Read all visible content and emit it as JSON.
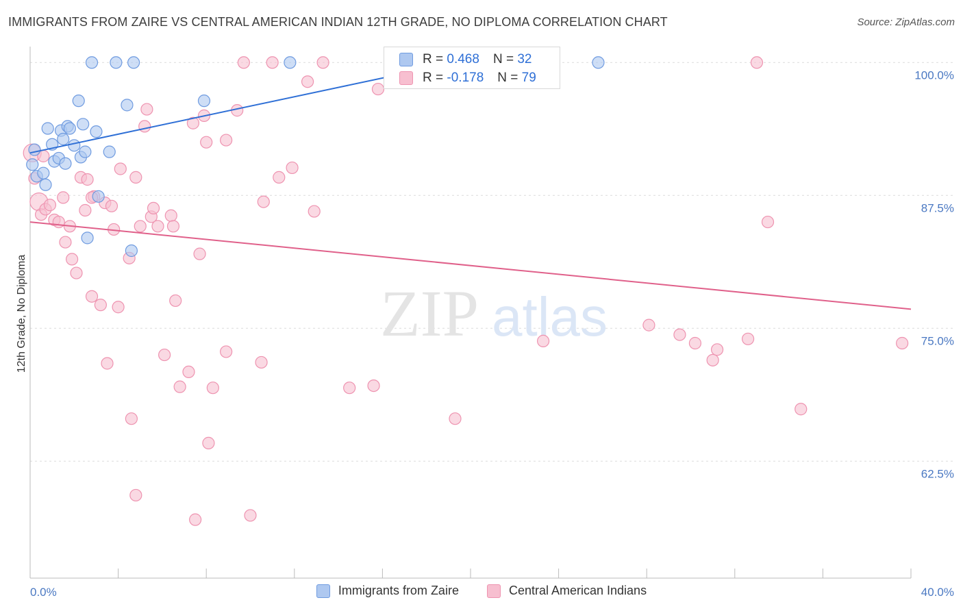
{
  "title": "IMMIGRANTS FROM ZAIRE VS CENTRAL AMERICAN INDIAN 12TH GRADE, NO DIPLOMA CORRELATION CHART",
  "source": "Source: ZipAtlas.com",
  "watermark": {
    "zip": "ZIP",
    "atlas": "atlas"
  },
  "colors": {
    "blue_fill": "#aec8f0",
    "blue_stroke": "#6f9be0",
    "blue_line": "#2e6fd6",
    "pink_fill": "#f7bfd0",
    "pink_stroke": "#ee93b0",
    "pink_line": "#e0608a",
    "tick_text": "#4a78c2"
  },
  "legend_top": {
    "rows": [
      {
        "r_label": "R =",
        "r_value": "0.468",
        "n_label": "N =",
        "n_value": "32"
      },
      {
        "r_label": "R =",
        "r_value": "-0.178",
        "n_label": "N =",
        "n_value": "79"
      }
    ]
  },
  "chart_data": {
    "type": "scatter",
    "title": "IMMIGRANTS FROM ZAIRE VS CENTRAL AMERICAN INDIAN 12TH GRADE, NO DIPLOMA CORRELATION CHART",
    "xlabel": "",
    "ylabel": "12th Grade, No Diploma",
    "xlim": [
      0,
      40
    ],
    "ylim": [
      51.5,
      101.5
    ],
    "x_tick_labels": [
      "0.0%",
      "40.0%"
    ],
    "y_ticks": [
      62.5,
      75.0,
      87.5,
      100.0
    ],
    "y_tick_labels": [
      "62.5%",
      "75.0%",
      "87.5%",
      "100.0%"
    ],
    "grid": true,
    "legend_placement": "bottom",
    "series": [
      {
        "name": "Immigrants from Zaire",
        "color": "#6f9be0",
        "trend": {
          "x0": 0,
          "y0": 91.5,
          "x1": 20,
          "y1": 100.3
        },
        "points": [
          [
            0.1,
            90.4
          ],
          [
            0.2,
            91.8
          ],
          [
            0.3,
            89.3
          ],
          [
            0.6,
            89.6
          ],
          [
            0.7,
            88.5
          ],
          [
            0.8,
            93.8
          ],
          [
            1.0,
            92.3
          ],
          [
            1.1,
            90.7
          ],
          [
            1.3,
            91.0
          ],
          [
            1.4,
            93.6
          ],
          [
            1.5,
            92.8
          ],
          [
            1.6,
            90.5
          ],
          [
            1.7,
            94.0
          ],
          [
            1.8,
            93.8
          ],
          [
            2.0,
            92.2
          ],
          [
            2.2,
            96.4
          ],
          [
            2.3,
            91.1
          ],
          [
            2.4,
            94.2
          ],
          [
            2.5,
            91.6
          ],
          [
            2.6,
            83.5
          ],
          [
            2.8,
            100.0
          ],
          [
            3.0,
            93.5
          ],
          [
            3.1,
            87.4
          ],
          [
            3.6,
            91.6
          ],
          [
            3.9,
            100.0
          ],
          [
            4.4,
            96.0
          ],
          [
            4.6,
            82.3
          ],
          [
            4.7,
            100.0
          ],
          [
            7.9,
            96.4
          ],
          [
            11.8,
            100.0
          ],
          [
            19.6,
            100.0
          ],
          [
            25.8,
            100.0
          ]
        ]
      },
      {
        "name": "Central American Indians",
        "color": "#ee93b0",
        "trend": {
          "x0": 0,
          "y0": 85.0,
          "x1": 40,
          "y1": 76.8
        },
        "points": [
          [
            0.1,
            91.5
          ],
          [
            0.2,
            89.1
          ],
          [
            0.4,
            86.9
          ],
          [
            0.5,
            85.7
          ],
          [
            0.7,
            86.2
          ],
          [
            0.9,
            86.6
          ],
          [
            1.1,
            85.2
          ],
          [
            1.3,
            85.0
          ],
          [
            1.5,
            87.3
          ],
          [
            1.6,
            83.1
          ],
          [
            1.8,
            84.6
          ],
          [
            1.9,
            81.5
          ],
          [
            2.1,
            80.2
          ],
          [
            2.3,
            89.2
          ],
          [
            2.5,
            86.1
          ],
          [
            2.6,
            89.0
          ],
          [
            2.8,
            78.0
          ],
          [
            2.9,
            87.4
          ],
          [
            3.2,
            77.2
          ],
          [
            3.4,
            86.8
          ],
          [
            3.5,
            71.7
          ],
          [
            3.7,
            86.5
          ],
          [
            3.8,
            84.3
          ],
          [
            4.0,
            77.0
          ],
          [
            4.1,
            90.0
          ],
          [
            4.5,
            81.6
          ],
          [
            4.6,
            66.5
          ],
          [
            4.8,
            89.2
          ],
          [
            5.0,
            84.6
          ],
          [
            5.2,
            94.0
          ],
          [
            5.3,
            95.6
          ],
          [
            5.5,
            85.5
          ],
          [
            5.6,
            86.3
          ],
          [
            5.8,
            84.6
          ],
          [
            6.1,
            72.5
          ],
          [
            6.4,
            85.6
          ],
          [
            6.5,
            84.6
          ],
          [
            6.6,
            77.6
          ],
          [
            6.8,
            69.5
          ],
          [
            7.2,
            70.9
          ],
          [
            7.4,
            94.3
          ],
          [
            7.5,
            57.0
          ],
          [
            7.7,
            82.0
          ],
          [
            7.9,
            95.0
          ],
          [
            8.0,
            92.5
          ],
          [
            8.1,
            64.2
          ],
          [
            8.3,
            69.4
          ],
          [
            8.9,
            72.8
          ],
          [
            8.9,
            92.7
          ],
          [
            9.4,
            95.5
          ],
          [
            9.7,
            100.0
          ],
          [
            10.0,
            57.4
          ],
          [
            10.5,
            71.8
          ],
          [
            10.6,
            86.9
          ],
          [
            11.0,
            100.0
          ],
          [
            11.3,
            89.2
          ],
          [
            11.9,
            90.1
          ],
          [
            12.6,
            98.2
          ],
          [
            12.9,
            86.0
          ],
          [
            13.3,
            100.0
          ],
          [
            14.5,
            69.4
          ],
          [
            15.6,
            69.6
          ],
          [
            15.8,
            97.5
          ],
          [
            19.3,
            66.5
          ],
          [
            22.6,
            100.0
          ],
          [
            23.3,
            73.8
          ],
          [
            28.1,
            75.3
          ],
          [
            29.5,
            74.4
          ],
          [
            30.2,
            73.6
          ],
          [
            31.0,
            72.0
          ],
          [
            31.2,
            73.0
          ],
          [
            32.6,
            74.0
          ],
          [
            33.0,
            100.0
          ],
          [
            33.5,
            85.0
          ],
          [
            35.0,
            67.4
          ],
          [
            39.6,
            73.6
          ],
          [
            4.8,
            59.3
          ],
          [
            2.8,
            87.3
          ],
          [
            0.6,
            91.2
          ]
        ]
      }
    ]
  }
}
